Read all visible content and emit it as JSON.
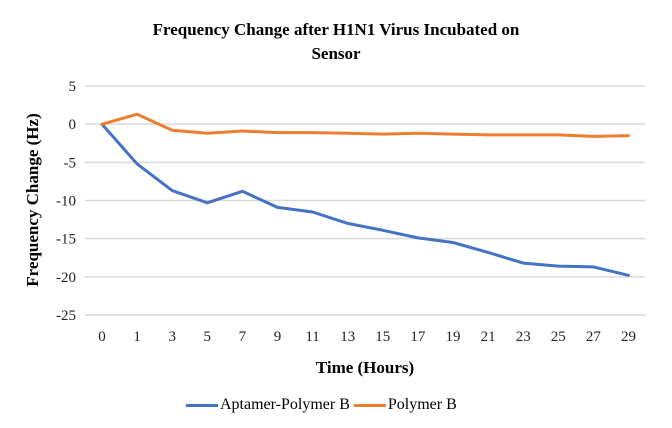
{
  "chart_data": {
    "type": "line",
    "title": "Frequency Change after H1N1 Virus Incubated on Sensor",
    "title_lines": [
      "Frequency Change after H1N1 Virus Incubated on",
      "Sensor"
    ],
    "xlabel": "Time (Hours)",
    "ylabel": "Frequency Change (Hz)",
    "categories": [
      "0",
      "1",
      "3",
      "5",
      "7",
      "9",
      "11",
      "13",
      "15",
      "17",
      "19",
      "21",
      "23",
      "25",
      "27",
      "29"
    ],
    "ylim": [
      -25,
      5
    ],
    "yticks": [
      "5",
      "0",
      "-5",
      "-10",
      "-15",
      "-20",
      "-25"
    ],
    "grid": true,
    "legend_position": "bottom",
    "series": [
      {
        "name": "Aptamer-Polymer B",
        "color": "#4472C4",
        "values": [
          0,
          -5.2,
          -8.7,
          -10.3,
          -8.8,
          -10.9,
          -11.5,
          -13.0,
          -13.9,
          -14.9,
          -15.5,
          -16.8,
          -18.2,
          -18.6,
          -18.7,
          -19.8
        ]
      },
      {
        "name": "Polymer B",
        "color": "#ED7D31",
        "values": [
          0,
          1.3,
          -0.8,
          -1.2,
          -0.9,
          -1.1,
          -1.1,
          -1.2,
          -1.3,
          -1.2,
          -1.3,
          -1.4,
          -1.4,
          -1.4,
          -1.6,
          -1.5
        ]
      }
    ]
  }
}
